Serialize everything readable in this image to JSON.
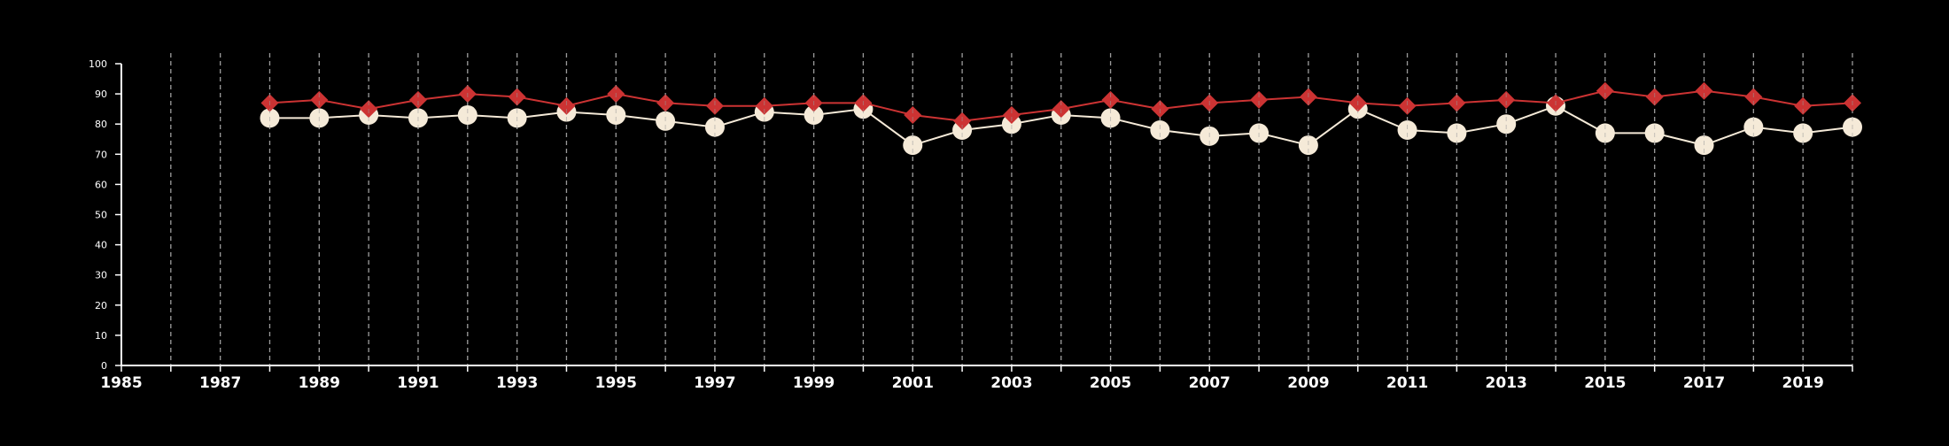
{
  "chart_data": {
    "type": "line",
    "title": "",
    "xlabel": "",
    "ylabel": "",
    "xlim": [
      1985,
      2020
    ],
    "ylim": [
      0,
      100
    ],
    "grid": "vertical-dashed-per-year",
    "legend": "none",
    "x_ticks": [
      "1985",
      "1987",
      "1989",
      "1991",
      "1993",
      "1995",
      "1997",
      "1999",
      "2001",
      "2003",
      "2005",
      "2007",
      "2009",
      "2011",
      "2013",
      "2015",
      "2017",
      "2019"
    ],
    "y_ticks": [
      "0",
      "10",
      "20",
      "30",
      "40",
      "50",
      "60",
      "70",
      "80",
      "90",
      "100"
    ],
    "x": [
      1988,
      1989,
      1990,
      1991,
      1992,
      1993,
      1994,
      1995,
      1996,
      1997,
      1998,
      1999,
      2000,
      2001,
      2002,
      2003,
      2004,
      2005,
      2006,
      2007,
      2008,
      2009,
      2010,
      2011,
      2012,
      2013,
      2014,
      2015,
      2016,
      2017,
      2018,
      2019,
      2020
    ],
    "series": [
      {
        "marker": "diamond",
        "color": "#cc3333",
        "values": [
          87,
          88,
          85,
          88,
          90,
          89,
          86,
          90,
          87,
          86,
          86,
          87,
          87,
          83,
          81,
          83,
          85,
          88,
          85,
          87,
          88,
          89,
          87,
          86,
          87,
          88,
          87,
          91,
          89,
          91,
          89,
          86,
          87
        ]
      },
      {
        "marker": "circle",
        "color": "#f5ead8",
        "values": [
          82,
          82,
          83,
          82,
          83,
          82,
          84,
          83,
          81,
          79,
          84,
          83,
          85,
          73,
          78,
          80,
          83,
          82,
          78,
          76,
          77,
          73,
          85,
          78,
          77,
          80,
          86,
          77,
          77,
          73,
          79,
          77,
          79
        ]
      }
    ]
  }
}
